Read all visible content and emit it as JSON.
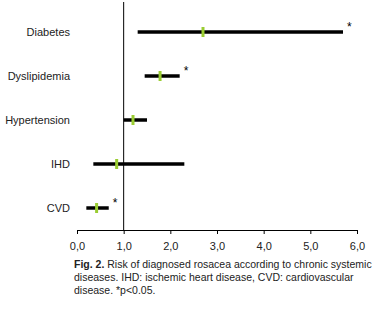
{
  "chart_data": {
    "type": "forest",
    "orientation": "horizontal",
    "categories": [
      "Diabetes",
      "Dyslipidemia",
      "Hypertension",
      "IHD",
      "CVD"
    ],
    "values": [
      2.7,
      1.78,
      1.2,
      0.85,
      0.42
    ],
    "ci_low": [
      1.3,
      1.45,
      1.0,
      0.35,
      0.2
    ],
    "ci_high": [
      5.7,
      2.2,
      1.5,
      2.3,
      0.68
    ],
    "significance": [
      "*",
      "*",
      null,
      null,
      "*"
    ],
    "ref_line": 1,
    "color": "#000000",
    "marker_color": "#9acd32",
    "xlim": [
      0,
      6
    ],
    "xticks": [
      {
        "value": 0,
        "label": "0,0"
      },
      {
        "value": 1,
        "label": "1,0"
      },
      {
        "value": 2,
        "label": "2,0"
      },
      {
        "value": 3,
        "label": "3,0"
      },
      {
        "value": 4,
        "label": "4,0"
      },
      {
        "value": 5,
        "label": "5,0"
      },
      {
        "value": 6,
        "label": "6,0"
      }
    ],
    "grid": false,
    "caption": {
      "label": "Fig. 2.",
      "text": "Risk of diagnosed rosacea according to chronic systemic diseases. IHD: ischemic heart disease, CVD: cardiovascular disease. *p<0.05."
    }
  }
}
